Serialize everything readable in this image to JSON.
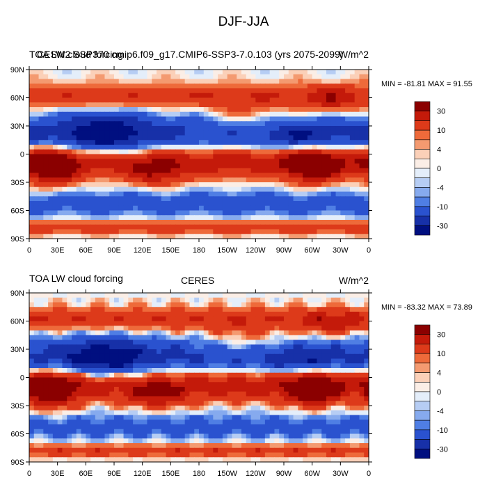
{
  "title": "DJF-JJA",
  "chart_data": [
    {
      "type": "heatmap",
      "left_label": "TOA LW cloud forcing",
      "center_label": "CESM2 SSP370 cmip6.f09_g17.CMIP6-SSP3-7.0.103 (yrs 2075-2099)",
      "right_label": "W/m^2",
      "stats": "MIN = -81.81 MAX =  91.55",
      "x_ticks": [
        "0",
        "30E",
        "60E",
        "90E",
        "120E",
        "150E",
        "180",
        "150W",
        "120W",
        "90W",
        "60W",
        "30W",
        "0"
      ],
      "y_ticks": [
        "90N",
        "60N",
        "30N",
        "0",
        "30S",
        "60S",
        "90S"
      ],
      "colorbar_ticks": [
        "30",
        "10",
        "4",
        "0",
        "-4",
        "-10",
        "-30"
      ],
      "xlim": [
        0,
        360
      ],
      "ylim": [
        -90,
        90
      ]
    },
    {
      "type": "heatmap",
      "left_label": "TOA LW cloud forcing",
      "center_label": "CERES",
      "right_label": "W/m^2",
      "stats": "MIN = -83.32 MAX =  73.89",
      "x_ticks": [
        "0",
        "30E",
        "60E",
        "90E",
        "120E",
        "150E",
        "180",
        "150W",
        "120W",
        "90W",
        "60W",
        "30W",
        "0"
      ],
      "y_ticks": [
        "90N",
        "60N",
        "30N",
        "0",
        "30S",
        "60S",
        "90S"
      ],
      "colorbar_ticks": [
        "30",
        "10",
        "4",
        "0",
        "-4",
        "-10",
        "-30"
      ],
      "xlim": [
        0,
        360
      ],
      "ylim": [
        -90,
        90
      ]
    }
  ],
  "colors": {
    "levels": [
      "#8b0000",
      "#c41a0a",
      "#dd3a1a",
      "#ee6a3a",
      "#f49a70",
      "#fbd0b8",
      "#fbeee6",
      "#e4eefa",
      "#b6cdf4",
      "#86aaee",
      "#4f7ee4",
      "#2a52cf",
      "#1730a8",
      "#000f80"
    ]
  }
}
